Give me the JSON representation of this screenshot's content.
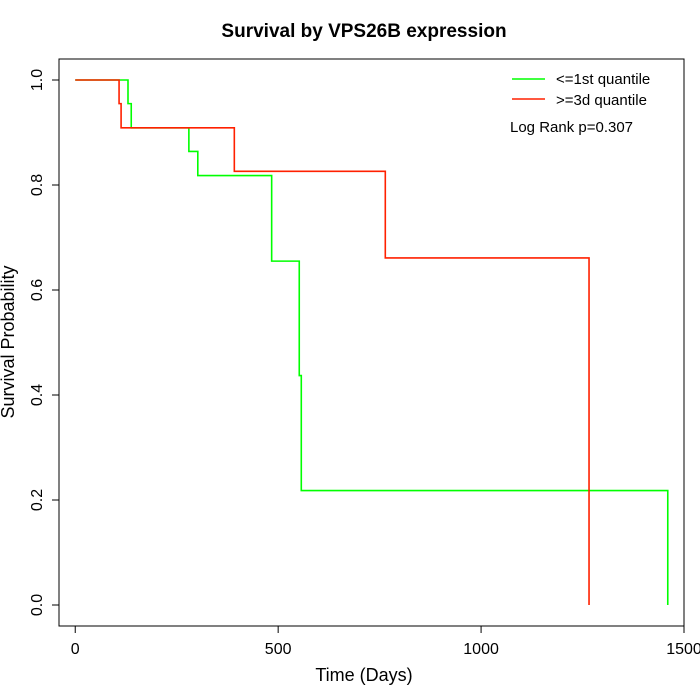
{
  "chart_data": {
    "type": "line",
    "step": true,
    "title": "Survival by VPS26B expression",
    "xlabel": "Time (Days)",
    "ylabel": "Survival Probability",
    "xlim": [
      -40,
      1500
    ],
    "ylim": [
      -0.04,
      1.04
    ],
    "x_ticks": [
      0,
      500,
      1000,
      1500
    ],
    "y_ticks": [
      0.0,
      0.2,
      0.4,
      0.6,
      0.8,
      1.0
    ],
    "x_tick_labels": [
      "0",
      "500",
      "1000",
      "1500"
    ],
    "y_tick_labels": [
      "0.0",
      "0.2",
      "0.4",
      "0.6",
      "0.8",
      "1.0"
    ],
    "grid": false,
    "legend_position": "top-right",
    "annotation": "Log Rank p=0.307",
    "series": [
      {
        "name": "<=1st quantile",
        "color": "#00ff00",
        "x": [
          0,
          130,
          138,
          280,
          302,
          484,
          552,
          557,
          1460
        ],
        "y": [
          1.0,
          0.955,
          0.909,
          0.864,
          0.818,
          0.655,
          0.437,
          0.218,
          0.0
        ]
      },
      {
        "name": ">=3d quantile",
        "color": "#ff2000",
        "x": [
          0,
          108,
          113,
          392,
          764,
          1266
        ],
        "y": [
          1.0,
          0.955,
          0.909,
          0.826,
          0.661,
          0.0
        ]
      }
    ]
  }
}
